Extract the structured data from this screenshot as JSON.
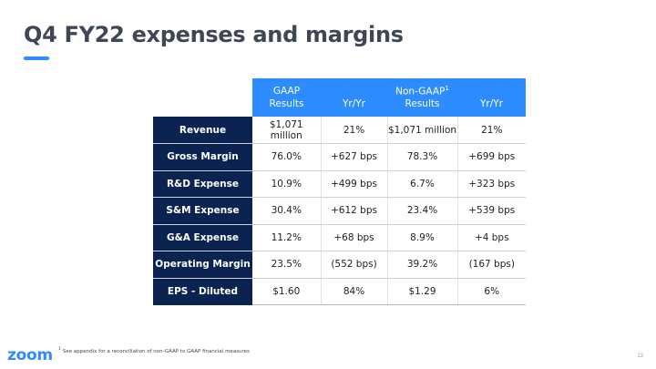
{
  "slide": {
    "title": "Q4 FY22 expenses and margins",
    "page_number": "13"
  },
  "table": {
    "headers": [
      {
        "line1": "GAAP",
        "line2": "Results",
        "sup": ""
      },
      {
        "line1": "",
        "line2": "Yr/Yr",
        "sup": ""
      },
      {
        "line1": "Non-GAAP",
        "line2": "Results",
        "sup": "1"
      },
      {
        "line1": "",
        "line2": "Yr/Yr",
        "sup": ""
      }
    ],
    "rows": [
      {
        "label": "Revenue",
        "gaap": "$1,071 million",
        "gaap_yy": "21%",
        "nongaap": "$1,071 million",
        "nongaap_yy": "21%"
      },
      {
        "label": "Gross Margin",
        "gaap": "76.0%",
        "gaap_yy": "+627 bps",
        "nongaap": "78.3%",
        "nongaap_yy": "+699 bps"
      },
      {
        "label": "R&D Expense",
        "gaap": "10.9%",
        "gaap_yy": "+499 bps",
        "nongaap": "6.7%",
        "nongaap_yy": "+323 bps"
      },
      {
        "label": "S&M Expense",
        "gaap": "30.4%",
        "gaap_yy": "+612 bps",
        "nongaap": "23.4%",
        "nongaap_yy": "+539 bps"
      },
      {
        "label": "G&A Expense",
        "gaap": "11.2%",
        "gaap_yy": "+68 bps",
        "nongaap": "8.9%",
        "nongaap_yy": "+4 bps"
      },
      {
        "label": "Operating Margin",
        "gaap": "23.5%",
        "gaap_yy": "(552 bps)",
        "nongaap": "39.2%",
        "nongaap_yy": "(167 bps)"
      },
      {
        "label": "EPS - Diluted",
        "gaap": "$1.60",
        "gaap_yy": "84%",
        "nongaap": "$1.29",
        "nongaap_yy": "6%"
      }
    ]
  },
  "footnote": {
    "marker": "1",
    "text": "See appendix for a reconciliation of non-GAAP to GAAP financial measures"
  },
  "logo": {
    "text": "zoom"
  },
  "colors": {
    "header_blue": "#2d8cff",
    "label_navy": "#0b2350",
    "title_gray": "#3d4756"
  }
}
